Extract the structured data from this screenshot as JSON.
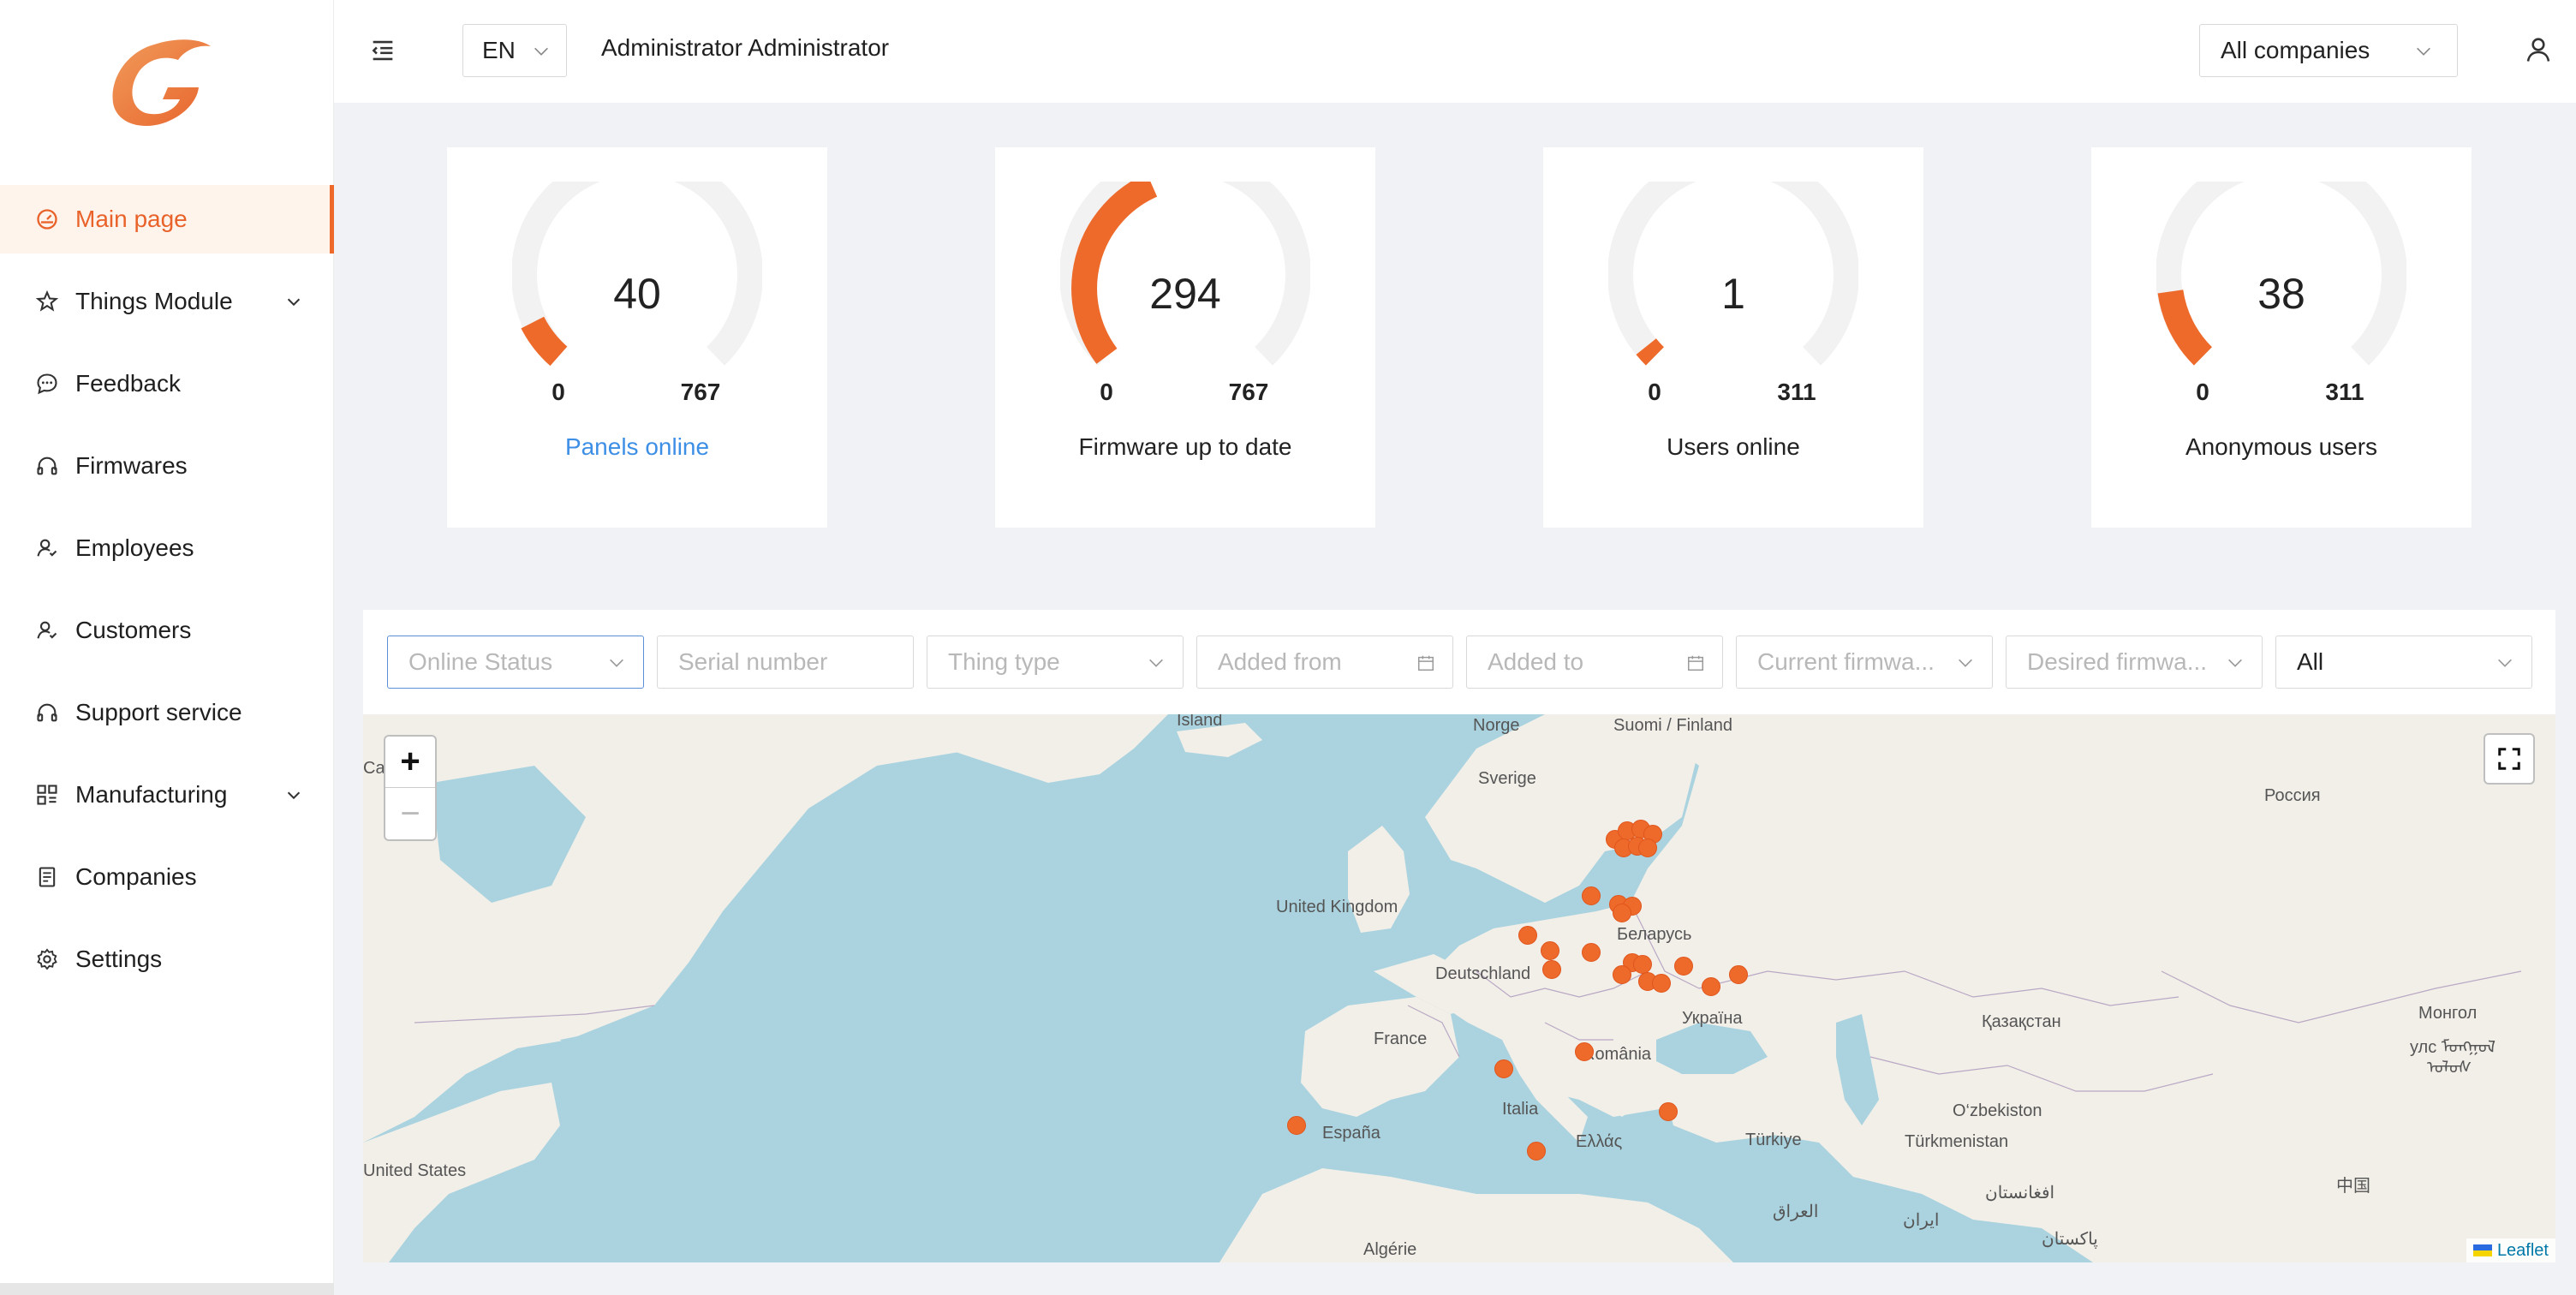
{
  "sidebar": {
    "items": [
      {
        "label": "Main page",
        "icon": "dashboard-icon"
      },
      {
        "label": "Things Module",
        "icon": "star-icon"
      },
      {
        "label": "Feedback",
        "icon": "chat-icon"
      },
      {
        "label": "Firmwares",
        "icon": "headphones-icon"
      },
      {
        "label": "Employees",
        "icon": "people-icon"
      },
      {
        "label": "Customers",
        "icon": "people-icon"
      },
      {
        "label": "Support service",
        "icon": "headset-icon"
      },
      {
        "label": "Manufacturing",
        "icon": "grid-icon"
      },
      {
        "label": "Companies",
        "icon": "document-icon"
      },
      {
        "label": "Settings",
        "icon": "gear-icon"
      }
    ]
  },
  "header": {
    "language": "EN",
    "user_name": "Administrator Administrator",
    "company_select": "All companies"
  },
  "stats": [
    {
      "value": "40",
      "min": "0",
      "max": "767",
      "label": "Panels online"
    },
    {
      "value": "294",
      "min": "0",
      "max": "767",
      "label": "Firmware up to date"
    },
    {
      "value": "1",
      "min": "0",
      "max": "311",
      "label": "Users online"
    },
    {
      "value": "38",
      "min": "0",
      "max": "311",
      "label": "Anonymous users"
    }
  ],
  "filters": {
    "online_status": "Online Status",
    "serial_number": "Serial number",
    "thing_type": "Thing type",
    "added_from": "Added from",
    "added_to": "Added to",
    "current_firmware": "Current firmwa...",
    "desired_firmware": "Desired firmwa...",
    "all": "All"
  },
  "map": {
    "zoom_in": "+",
    "zoom_out": "−",
    "attribution": "Leaflet",
    "labels": {
      "island": "Island",
      "norge": "Norge",
      "suomi": "Suomi / Finland",
      "sverige": "Sverige",
      "rossiya": "Россия",
      "uk": "United Kingdom",
      "belarus": "Беларусь",
      "deutschland": "Deutschland",
      "ukraina": "Україна",
      "mongol": "Монгол",
      "mongol2": "улс ᠮᠣᠩᠭᠣᠯ",
      "mongol3": "ᠤᠯᠤᠰ",
      "kazakhstan": "Қазақстан",
      "france": "France",
      "romania": "România",
      "uzbekistan": "O‘zbekiston",
      "italia": "Italia",
      "espana": "España",
      "ellas": "Ελλάς",
      "turkiye": "Türkiye",
      "turkmenistan": "Türkmenistan",
      "us": "United States",
      "china": "中国",
      "afghanistan": "افغانستان",
      "iraq": "العراق",
      "iran": "ایران",
      "pakistan": "پاکستان",
      "algerie": "Algérie",
      "ca": "Ca"
    }
  },
  "colors": {
    "accent": "#ee6a2b",
    "gauge_track": "#f2f2f2",
    "link": "#3d8fe6",
    "water": "#aad3df",
    "land": "#f2efe9"
  }
}
